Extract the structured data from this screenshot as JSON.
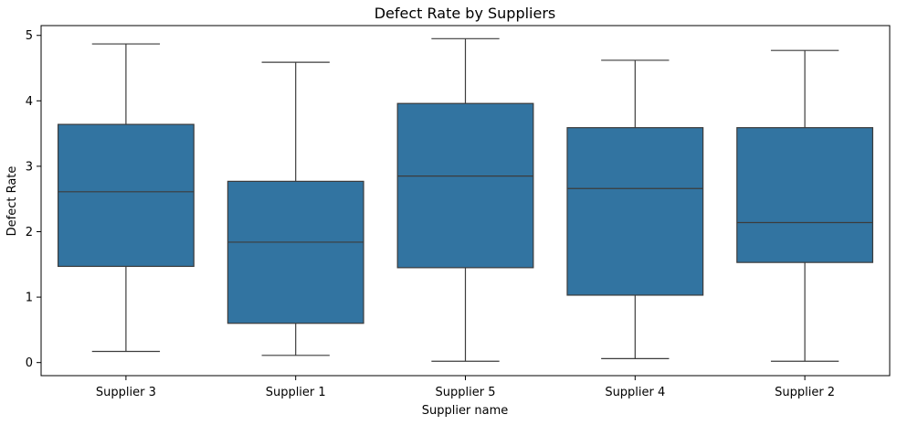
{
  "chart_data": {
    "type": "box",
    "title": "Defect Rate by Suppliers",
    "xlabel": "Supplier name",
    "ylabel": "Defect Rate",
    "ylim": [
      -0.2,
      5.15
    ],
    "yticks": [
      "0",
      "1",
      "2",
      "3",
      "4",
      "5"
    ],
    "grid": false,
    "box_color": "#3274a1",
    "line_color": "#3c3c3c",
    "categories": [
      "Supplier 3",
      "Supplier 1",
      "Supplier 5",
      "Supplier 4",
      "Supplier 2"
    ],
    "boxes": [
      {
        "name": "Supplier 3",
        "whisker_low": 0.17,
        "q1": 1.47,
        "median": 2.61,
        "q3": 3.64,
        "whisker_high": 4.87
      },
      {
        "name": "Supplier 1",
        "whisker_low": 0.11,
        "q1": 0.6,
        "median": 1.84,
        "q3": 2.77,
        "whisker_high": 4.59
      },
      {
        "name": "Supplier 5",
        "whisker_low": 0.02,
        "q1": 1.45,
        "median": 2.85,
        "q3": 3.96,
        "whisker_high": 4.95
      },
      {
        "name": "Supplier 4",
        "whisker_low": 0.06,
        "q1": 1.03,
        "median": 2.66,
        "q3": 3.59,
        "whisker_high": 4.62
      },
      {
        "name": "Supplier 2",
        "whisker_low": 0.02,
        "q1": 1.53,
        "median": 2.14,
        "q3": 3.59,
        "whisker_high": 4.77
      }
    ]
  }
}
